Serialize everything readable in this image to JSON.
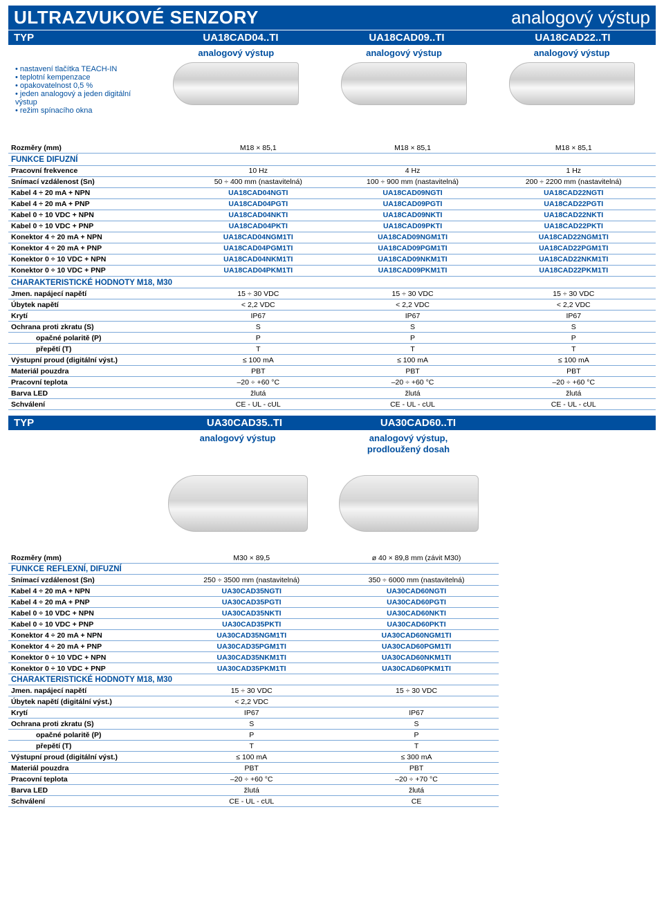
{
  "banner": {
    "left": "ULTRAZVUKOVÉ SENZORY",
    "right": "analogový výstup"
  },
  "typrow1": {
    "label": "TYP",
    "c1": "UA18CAD04..TI",
    "c2": "UA18CAD09..TI",
    "c3": "UA18CAD22..TI"
  },
  "sub1": {
    "c1": "analogový výstup",
    "c2": "analogový výstup",
    "c3": "analogový výstup"
  },
  "features": [
    "nastavení tlačítka TEACH-IN",
    "teplotní kempenzace",
    "opakovatelnost 0,5 %",
    "jeden analogový a jeden digitální výstup",
    "režim spínacího okna"
  ],
  "table1": {
    "rows": [
      {
        "label": "Rozměry (mm)",
        "v": [
          "M18 × 85,1",
          "M18 × 85,1",
          "M18 × 85,1"
        ]
      }
    ],
    "section1": "FUNKCE DIFUZNÍ",
    "section1rows": [
      {
        "label": "Pracovní frekvence",
        "v": [
          "10 Hz",
          "4 Hz",
          "1 Hz"
        ]
      },
      {
        "label": "Snímací vzdálenost (Sn)",
        "v": [
          "50 ÷ 400 mm (nastavitelná)",
          "100 ÷ 900 mm (nastavitelná)",
          "200 ÷ 2200 mm (nastavitelná)"
        ]
      },
      {
        "label": "Kabel 4 ÷ 20 mA + NPN",
        "v": [
          "UA18CAD04NGTI",
          "UA18CAD09NGTI",
          "UA18CAD22NGTI"
        ],
        "blue": true
      },
      {
        "label": "Kabel 4 ÷ 20 mA + PNP",
        "v": [
          "UA18CAD04PGTI",
          "UA18CAD09PGTI",
          "UA18CAD22PGTI"
        ],
        "blue": true
      },
      {
        "label": "Kabel 0 ÷ 10 VDC + NPN",
        "v": [
          "UA18CAD04NKTI",
          "UA18CAD09NKTI",
          "UA18CAD22NKTI"
        ],
        "blue": true
      },
      {
        "label": "Kabel 0 ÷ 10 VDC + PNP",
        "v": [
          "UA18CAD04PKTI",
          "UA18CAD09PKTI",
          "UA18CAD22PKTI"
        ],
        "blue": true
      },
      {
        "label": "Konektor 4 ÷ 20 mA + NPN",
        "v": [
          "UA18CAD04NGM1TI",
          "UA18CAD09NGM1TI",
          "UA18CAD22NGM1TI"
        ],
        "blue": true
      },
      {
        "label": "Konektor 4 ÷ 20 mA + PNP",
        "v": [
          "UA18CAD04PGM1TI",
          "UA18CAD09PGM1TI",
          "UA18CAD22PGM1TI"
        ],
        "blue": true
      },
      {
        "label": "Konektor 0 ÷ 10 VDC + NPN",
        "v": [
          "UA18CAD04NKM1TI",
          "UA18CAD09NKM1TI",
          "UA18CAD22NKM1TI"
        ],
        "blue": true
      },
      {
        "label": "Konektor 0 ÷ 10 VDC + PNP",
        "v": [
          "UA18CAD04PKM1TI",
          "UA18CAD09PKM1TI",
          "UA18CAD22PKM1TI"
        ],
        "blue": true
      }
    ],
    "section2": "CHARAKTERISTICKÉ HODNOTY M18, M30",
    "section2rows": [
      {
        "label": "Jmen. napájecí napětí",
        "v": [
          "15 ÷ 30 VDC",
          "15 ÷ 30 VDC",
          "15 ÷ 30 VDC"
        ]
      },
      {
        "label": "Úbytek napětí",
        "v": [
          "< 2,2 VDC",
          "< 2,2 VDC",
          "< 2,2 VDC"
        ]
      },
      {
        "label": "Krytí",
        "v": [
          "IP67",
          "IP67",
          "IP67"
        ]
      },
      {
        "label": "Ochrana proti zkratu (S)",
        "v": [
          "S",
          "S",
          "S"
        ]
      },
      {
        "label": "opačné polaritě (P)",
        "v": [
          "P",
          "P",
          "P"
        ],
        "indent": true
      },
      {
        "label": "přepětí (T)",
        "v": [
          "T",
          "T",
          "T"
        ],
        "indent": true
      },
      {
        "label": "Výstupní proud (digitální výst.)",
        "v": [
          "≤ 100 mA",
          "≤ 100 mA",
          "≤ 100 mA"
        ]
      },
      {
        "label": "Materiál pouzdra",
        "v": [
          "PBT",
          "PBT",
          "PBT"
        ]
      },
      {
        "label": "Pracovní teplota",
        "v": [
          "–20 ÷ +60 °C",
          "–20 ÷ +60 °C",
          "–20 ÷ +60 °C"
        ]
      },
      {
        "label": "Barva LED",
        "v": [
          "žlutá",
          "žlutá",
          "žlutá"
        ]
      },
      {
        "label": "Schválení",
        "v": [
          "CE - UL - cUL",
          "CE - UL - cUL",
          "CE - UL - cUL"
        ]
      }
    ]
  },
  "typrow2": {
    "label": "TYP",
    "c1": "UA30CAD35..TI",
    "c2": "UA30CAD60..TI"
  },
  "sub2": {
    "c1": "analogový výstup",
    "c2": "analogový výstup,\nprodloužený dosah"
  },
  "table2": {
    "rows": [
      {
        "label": "Rozměry (mm)",
        "v": [
          "M30 × 89,5",
          "ø 40 × 89,8 mm (závit M30)"
        ]
      }
    ],
    "section1": "FUNKCE REFLEXNÍ, DIFUZNÍ",
    "section1rows": [
      {
        "label": "Snímací vzdálenost (Sn)",
        "v": [
          "250 ÷ 3500 mm (nastavitelná)",
          "350 ÷ 6000 mm (nastavitelná)"
        ]
      },
      {
        "label": "Kabel 4 ÷ 20 mA + NPN",
        "v": [
          "UA30CAD35NGTI",
          "UA30CAD60NGTI"
        ],
        "blue": true
      },
      {
        "label": "Kabel 4 ÷ 20 mA + PNP",
        "v": [
          "UA30CAD35PGTI",
          "UA30CAD60PGTI"
        ],
        "blue": true
      },
      {
        "label": "Kabel 0 ÷ 10 VDC + NPN",
        "v": [
          "UA30CAD35NKTI",
          "UA30CAD60NKTI"
        ],
        "blue": true
      },
      {
        "label": "Kabel 0 ÷ 10 VDC + PNP",
        "v": [
          "UA30CAD35PKTI",
          "UA30CAD60PKTI"
        ],
        "blue": true
      },
      {
        "label": "Konektor 4 ÷ 20 mA + NPN",
        "v": [
          "UA30CAD35NGM1TI",
          "UA30CAD60NGM1TI"
        ],
        "blue": true
      },
      {
        "label": "Konektor 4 ÷ 20 mA + PNP",
        "v": [
          "UA30CAD35PGM1TI",
          "UA30CAD60PGM1TI"
        ],
        "blue": true
      },
      {
        "label": "Konektor 0 ÷ 10 VDC + NPN",
        "v": [
          "UA30CAD35NKM1TI",
          "UA30CAD60NKM1TI"
        ],
        "blue": true
      },
      {
        "label": "Konektor 0 ÷ 10 VDC + PNP",
        "v": [
          "UA30CAD35PKM1TI",
          "UA30CAD60PKM1TI"
        ],
        "blue": true
      }
    ],
    "section2": "CHARAKTERISTICKÉ HODNOTY M18, M30",
    "section2rows": [
      {
        "label": "Jmen. napájecí napětí",
        "v": [
          "15 ÷ 30 VDC",
          "15 ÷ 30 VDC"
        ]
      },
      {
        "label": "Úbytek napětí  (digitální výst.)",
        "v": [
          "< 2,2 VDC",
          ""
        ]
      },
      {
        "label": "Krytí",
        "v": [
          "IP67",
          "IP67"
        ]
      },
      {
        "label": "Ochrana proti zkratu (S)",
        "v": [
          "S",
          "S"
        ]
      },
      {
        "label": "opačné polaritě (P)",
        "v": [
          "P",
          "P"
        ],
        "indent": true
      },
      {
        "label": "přepětí (T)",
        "v": [
          "T",
          "T"
        ],
        "indent": true
      },
      {
        "label": "Výstupní proud (digitální výst.)",
        "v": [
          "≤ 100 mA",
          "≤ 300 mA"
        ]
      },
      {
        "label": "Materiál pouzdra",
        "v": [
          "PBT",
          "PBT"
        ]
      },
      {
        "label": "Pracovní teplota",
        "v": [
          "–20 ÷ +60 °C",
          "–20 ÷ +70 °C"
        ]
      },
      {
        "label": "Barva LED",
        "v": [
          "žlutá",
          "žlutá"
        ]
      },
      {
        "label": "Schválení",
        "v": [
          "CE - UL - cUL",
          "CE"
        ]
      }
    ]
  },
  "colors": {
    "brand": "#004f9f",
    "rowBorder": "#7aa7d8",
    "background": "#ffffff"
  },
  "typography": {
    "bannerSize": 26,
    "typRowSize": 15,
    "subRowSize": 13,
    "bodySize": 11,
    "tableSize": 10.5
  }
}
